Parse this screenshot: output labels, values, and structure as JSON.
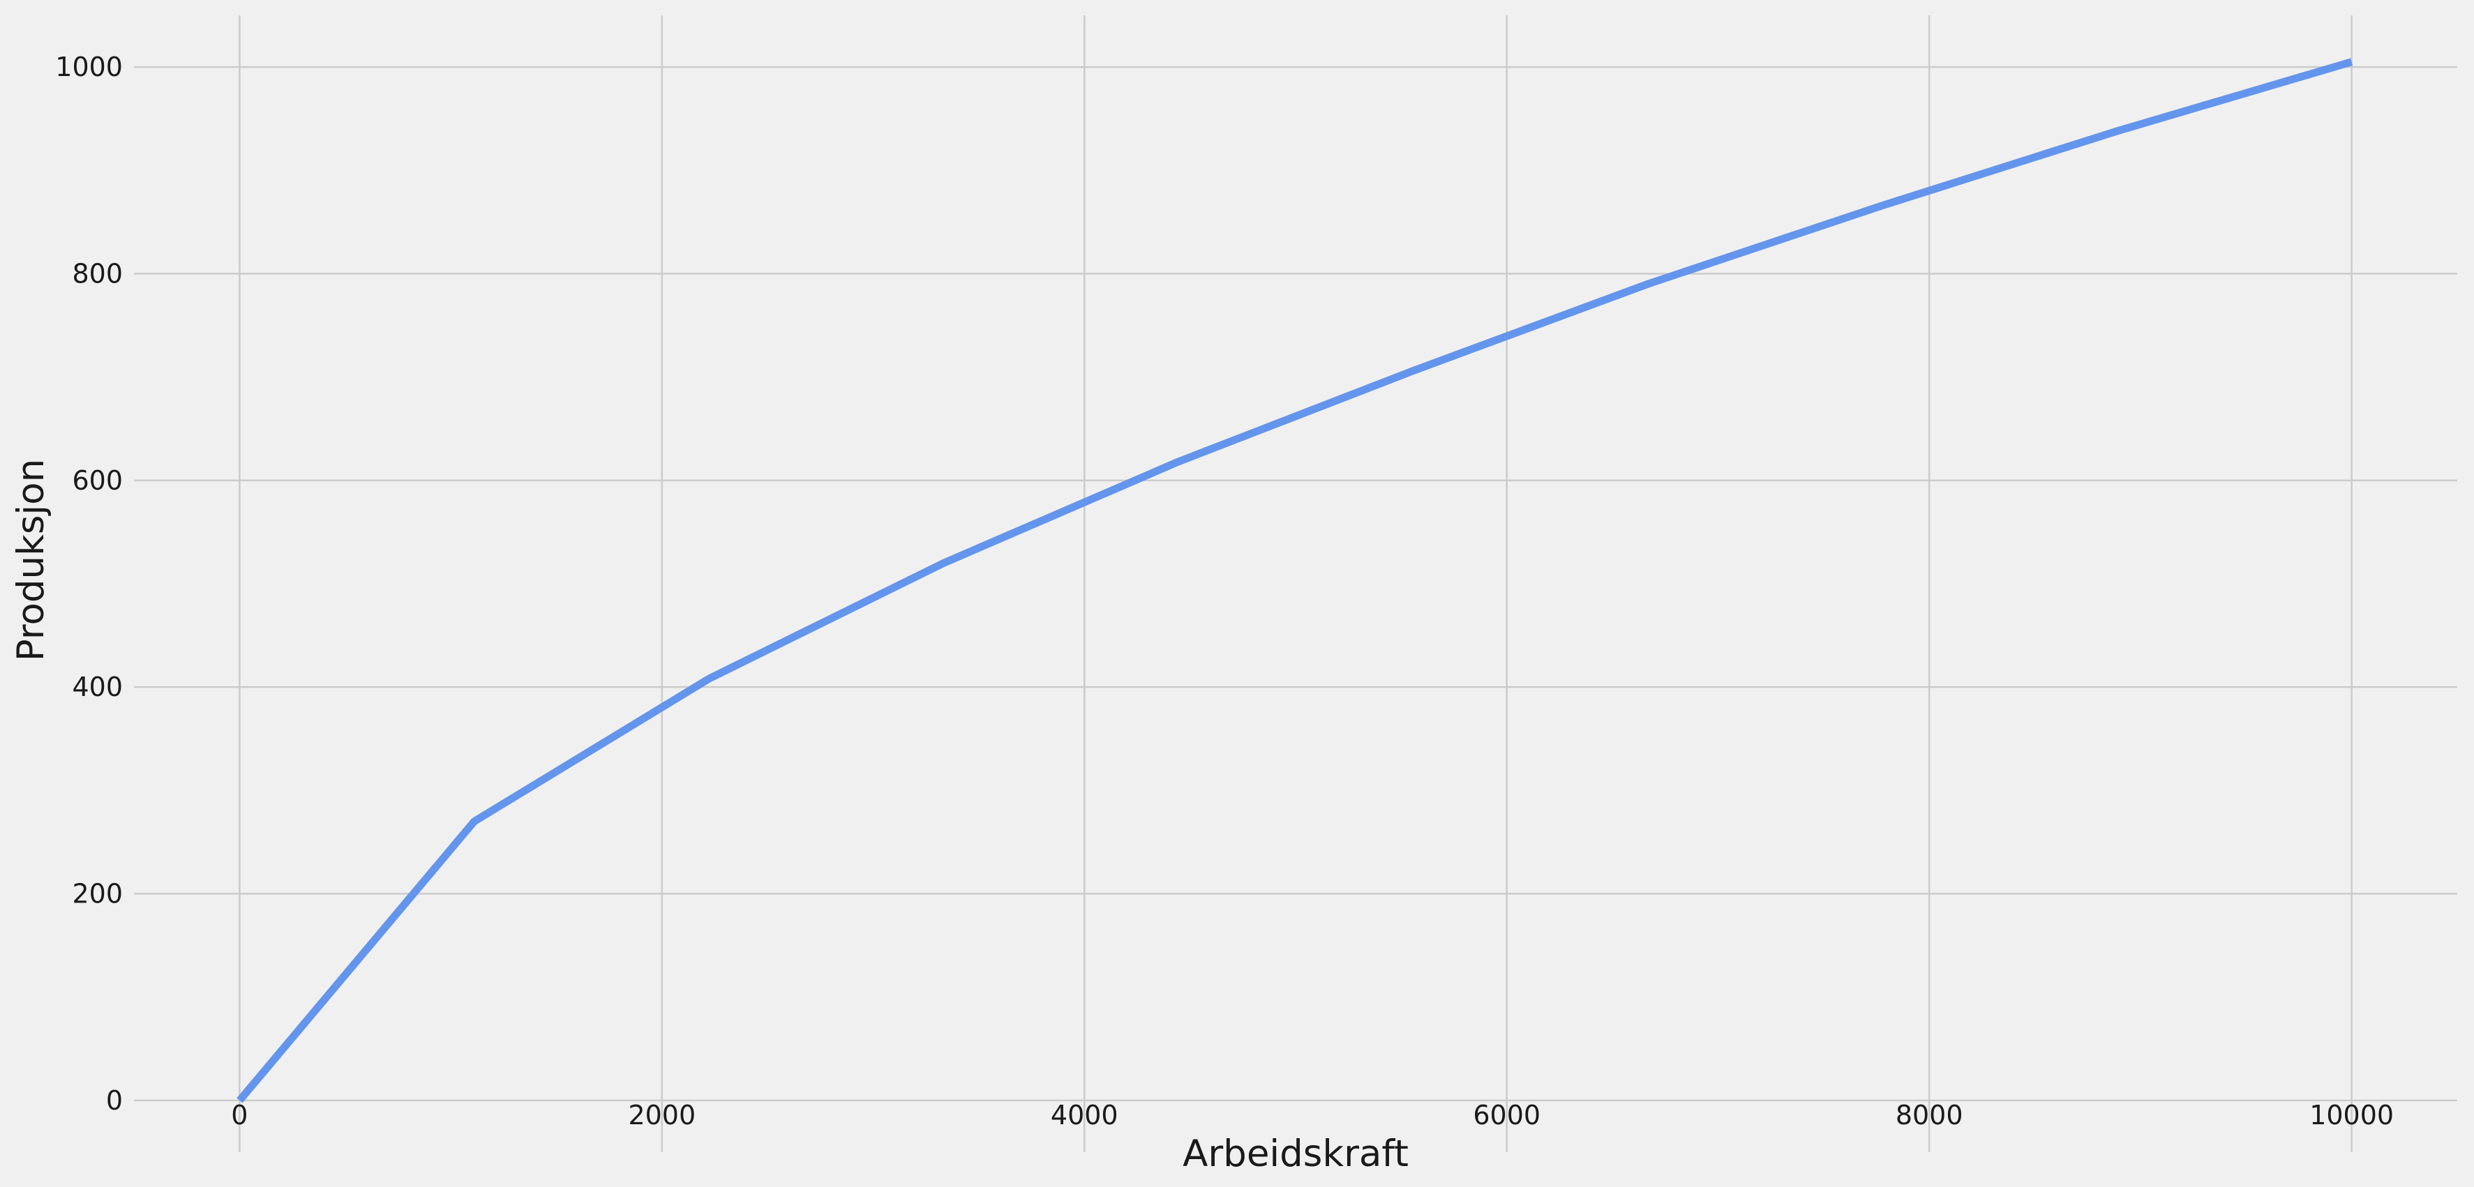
{
  "chart_data": {
    "type": "line",
    "title": "",
    "xlabel": "Arbeidskraft",
    "ylabel": "Produksjon",
    "xlim": [
      -500,
      10500
    ],
    "ylim": [
      -50,
      1050
    ],
    "x_ticks": [
      0,
      2000,
      4000,
      6000,
      8000,
      10000
    ],
    "y_ticks": [
      0,
      200,
      400,
      600,
      800,
      1000
    ],
    "grid": true,
    "legend": "none",
    "style": {
      "background": "#f0f0f0",
      "grid_color": "#cbcbcb",
      "line_color": "#6495ed"
    },
    "series": [
      {
        "x": [
          0,
          1111,
          2222,
          3333,
          4444,
          5556,
          6667,
          7778,
          8889,
          10000
        ],
        "y": [
          0,
          270,
          408,
          520,
          618,
          706,
          790,
          866,
          938,
          1005
        ]
      }
    ]
  }
}
